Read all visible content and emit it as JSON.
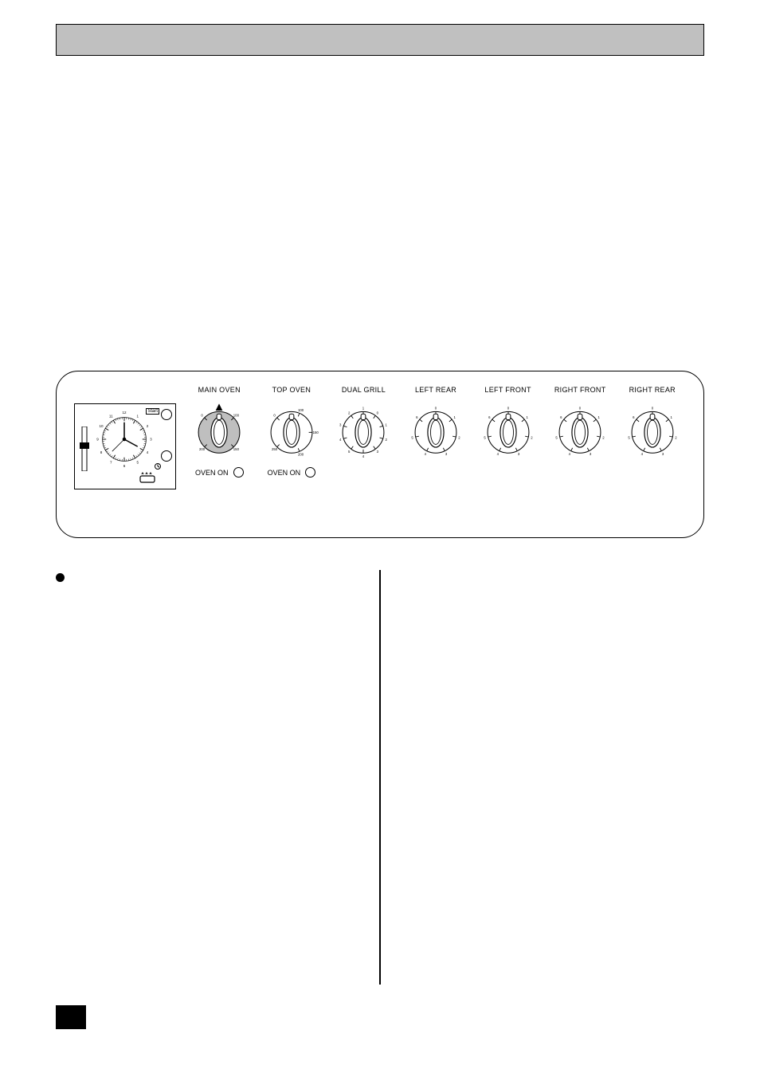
{
  "panel": {
    "timer": {
      "ticks_major": [
        12,
        1,
        2,
        3,
        4,
        5,
        6,
        7,
        8,
        9,
        10,
        11
      ],
      "start_label": "Start"
    },
    "knobs": [
      {
        "label": "MAIN OVEN",
        "type": "temperature",
        "fill": "#bfbfbf",
        "scale_marks": [
          "0",
          "100",
          "150",
          "200"
        ],
        "pointer_angle": 45,
        "top_pointer": true,
        "oven_on": "OVEN ON"
      },
      {
        "label": "TOP OVEN",
        "type": "temperature",
        "fill": "#ffffff",
        "scale_marks": [
          "0",
          "100",
          "150",
          "200",
          "250"
        ],
        "pointer_angle": 0,
        "top_pointer": false,
        "oven_on": "OVEN ON"
      },
      {
        "label": "DUAL GRILL",
        "type": "grill",
        "fill": "#ffffff",
        "scale_marks": [
          "1",
          "0",
          "1",
          "2",
          "3",
          "4",
          "5",
          "4",
          "3",
          "2"
        ],
        "pointer_angle": 0,
        "oven_on": null
      },
      {
        "label": "LEFT REAR",
        "type": "hob",
        "fill": "#ffffff",
        "scale_marks": [
          "0",
          "1",
          "2",
          "3",
          "4",
          "5",
          "6"
        ],
        "pointer_angle": 0,
        "oven_on": null
      },
      {
        "label": "LEFT FRONT",
        "type": "hob",
        "fill": "#ffffff",
        "scale_marks": [
          "0",
          "1",
          "2",
          "3",
          "4",
          "5",
          "6"
        ],
        "pointer_angle": 0,
        "oven_on": null
      },
      {
        "label": "RIGHT FRONT",
        "type": "hob",
        "fill": "#ffffff",
        "scale_marks": [
          "0",
          "1",
          "2",
          "3",
          "4",
          "5",
          "6"
        ],
        "pointer_angle": 0,
        "oven_on": null
      },
      {
        "label": "RIGHT REAR",
        "type": "hob",
        "fill": "#ffffff",
        "scale_marks": [
          "0",
          "1",
          "2",
          "3",
          "4",
          "5",
          "6"
        ],
        "pointer_angle": 0,
        "oven_on": null
      }
    ]
  },
  "colors": {
    "header_bg": "#c0c0c0",
    "page_bg": "#ffffff",
    "line": "#000000"
  },
  "page_number_box": true
}
